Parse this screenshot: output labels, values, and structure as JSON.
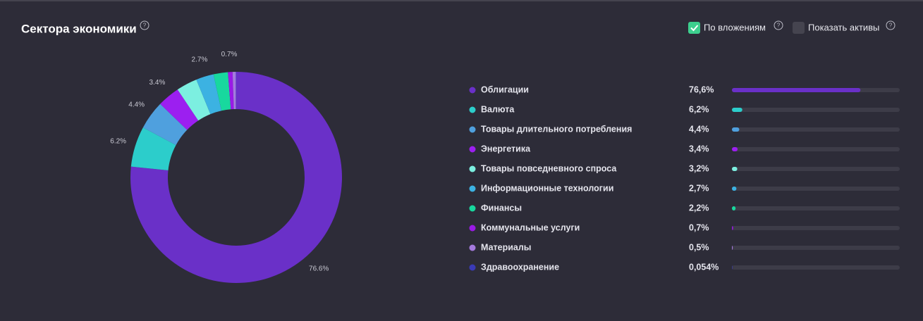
{
  "title": "Сектора экономики",
  "options": [
    "По вложениям",
    "Показать активы"
  ],
  "chart_data": {
    "type": "pie",
    "donut": true,
    "categories": [
      "Облигации",
      "Валюта",
      "Товары длительного потребления",
      "Энергетика",
      "Товары повседневного спроса",
      "Информационные технологии",
      "Финансы",
      "Коммунальные услуги",
      "Материалы",
      "Здравоохранение"
    ],
    "values": [
      76.6,
      6.2,
      4.4,
      3.4,
      3.2,
      2.7,
      2.2,
      0.7,
      0.5,
      0.054
    ],
    "value_labels": [
      "76.6%",
      "6.2%",
      "4.4%",
      "3.4%",
      null,
      "2.7%",
      null,
      "0.7%",
      null,
      null
    ],
    "legend_labels": [
      "76,6%",
      "6,2%",
      "4,4%",
      "3,4%",
      "3,2%",
      "2,7%",
      "2,2%",
      "0,7%",
      "0,5%",
      "0,054%"
    ],
    "colors": [
      "#6a30c8",
      "#2ccdcb",
      "#4fa0de",
      "#9c1ff0",
      "#7cefe0",
      "#3cb2e2",
      "#18d89e",
      "#9a1ae6",
      "#a57ade",
      "#3a3ab6"
    ],
    "xlim": [
      0,
      100
    ]
  }
}
